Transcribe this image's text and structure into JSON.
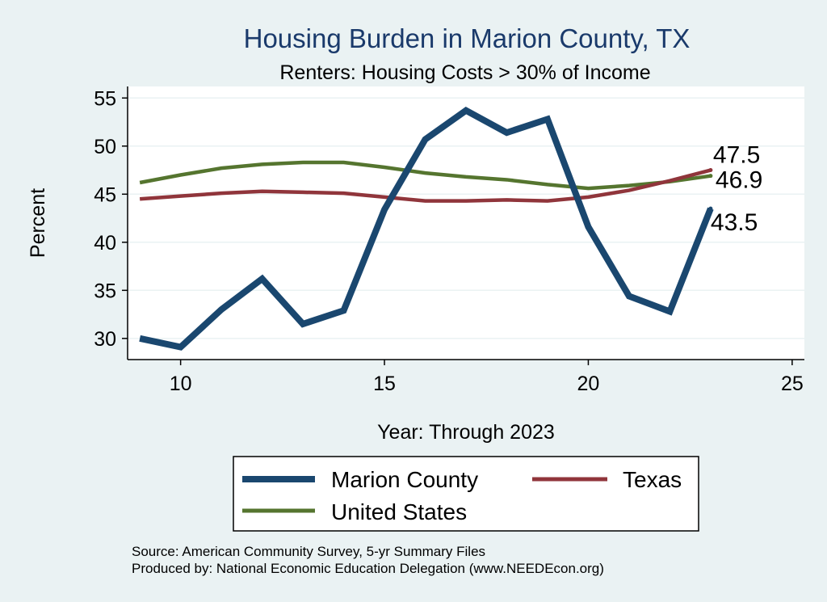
{
  "chart_data": {
    "type": "line",
    "title": "Housing Burden in Marion County, TX",
    "subtitle": "Renters: Housing Costs > 30% of Income",
    "xlabel": "Year: Through 2023",
    "ylabel": "Percent",
    "xlim": [
      8.7,
      25.3
    ],
    "ylim": [
      27.8,
      56.2
    ],
    "xticks": [
      10,
      15,
      20,
      25
    ],
    "yticks": [
      30,
      35,
      40,
      45,
      50,
      55
    ],
    "grid": true,
    "legend_position": "bottom",
    "x": [
      9,
      10,
      11,
      12,
      13,
      14,
      15,
      16,
      17,
      18,
      19,
      20,
      21,
      22,
      23
    ],
    "series": [
      {
        "name": "Marion County",
        "color": "#1a476f",
        "values": [
          30.0,
          29.1,
          33.0,
          36.2,
          31.5,
          32.9,
          43.4,
          50.7,
          53.7,
          51.4,
          52.8,
          41.6,
          34.4,
          32.8,
          43.5
        ],
        "end_label": "43.5"
      },
      {
        "name": "Texas",
        "color": "#90353b",
        "values": [
          44.5,
          44.8,
          45.1,
          45.3,
          45.2,
          45.1,
          44.7,
          44.3,
          44.3,
          44.4,
          44.3,
          44.7,
          45.4,
          46.4,
          47.5
        ],
        "end_label": "47.5"
      },
      {
        "name": "United States",
        "color": "#55752f",
        "values": [
          46.2,
          47.0,
          47.7,
          48.1,
          48.3,
          48.3,
          47.8,
          47.2,
          46.8,
          46.5,
          46.0,
          45.6,
          45.9,
          46.3,
          46.9
        ],
        "end_label": "46.9"
      }
    ]
  },
  "footer": {
    "source": "Source: American Community Survey, 5-yr Summary Files",
    "produced_by": "Produced by: National Economic Education Delegation (www.NEEDEcon.org)"
  }
}
